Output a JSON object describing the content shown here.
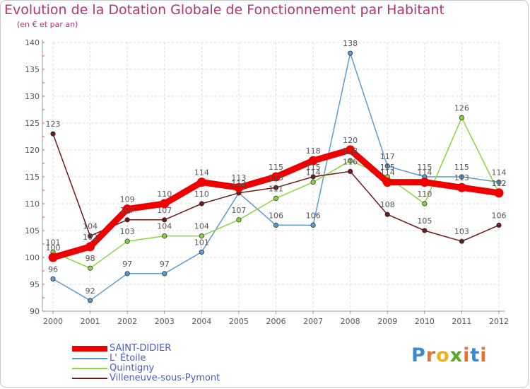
{
  "header": {
    "title": "Evolution de la Dotation Globale de Fonctionnement par Habitant",
    "subtitle": "(en € et par an)"
  },
  "logo": {
    "letters": [
      "P",
      "r",
      "o",
      "x",
      "i",
      "t",
      "i"
    ],
    "colors": [
      "#3b8ad0",
      "#e8732c",
      "#f2b21c",
      "#5aa82d",
      "#e8732c",
      "#3b8ad0",
      "#e8732c"
    ]
  },
  "chart_data": {
    "type": "line",
    "title": "Evolution de la Dotation Globale de Fonctionnement par Habitant",
    "subtitle": "(en € et par an)",
    "xlabel": "",
    "ylabel": "",
    "x": [
      "2000",
      "2001",
      "2002",
      "2003",
      "2004",
      "2005",
      "2006",
      "2007",
      "2008",
      "2009",
      "2010",
      "2011",
      "2012"
    ],
    "ylim": [
      90,
      140
    ],
    "yticks": [
      90,
      95,
      100,
      105,
      110,
      115,
      120,
      125,
      130,
      135,
      140
    ],
    "grid": true,
    "legend_position": "bottom-left",
    "series": [
      {
        "name": "SAINT-DIDIER",
        "color": "#ee0000",
        "emphasis": true,
        "values": [
          100,
          102,
          109,
          110,
          114,
          113,
          115,
          118,
          120,
          114,
          114,
          113,
          112
        ]
      },
      {
        "name": "L' Étoile",
        "color": "#5b9bd1",
        "values": [
          96,
          92,
          97,
          97,
          101,
          112,
          106,
          106,
          138,
          117,
          115,
          115,
          114
        ]
      },
      {
        "name": "Quintigny",
        "color": "#8ad43e",
        "values": [
          101,
          98,
          103,
          104,
          104,
          107,
          111,
          114,
          118,
          115,
          110,
          126,
          112
        ]
      },
      {
        "name": "Villeneuve-sous-Pymont",
        "color": "#6b1a1a",
        "values": [
          123,
          104,
          107,
          107,
          110,
          112,
          113,
          115,
          116,
          108,
          105,
          103,
          106
        ]
      }
    ]
  }
}
